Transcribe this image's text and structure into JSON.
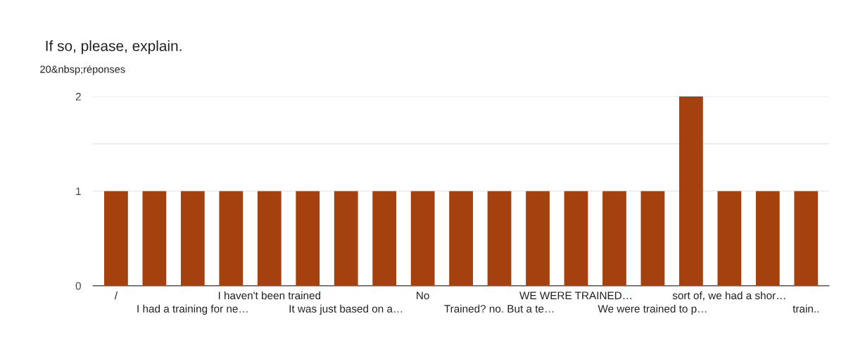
{
  "chart_data": {
    "type": "bar",
    "title": "If so, please, explain.",
    "subtitle": "20&nbsp;réponses",
    "categories": [
      "/",
      null,
      "I had a training for ne…",
      null,
      "I haven't been trained",
      null,
      "It was just based on a…",
      null,
      "No",
      null,
      "Trained? no. But a te…",
      null,
      "WE WERE TRAINED…",
      null,
      "We were trained to p…",
      null,
      "sort of, we had a shor…",
      null,
      "train.."
    ],
    "values": [
      1,
      1,
      1,
      1,
      1,
      1,
      1,
      1,
      1,
      1,
      1,
      1,
      1,
      1,
      1,
      2,
      1,
      1,
      1
    ],
    "color": "#a5400f",
    "ylim": [
      0,
      2
    ],
    "yticks": [
      0,
      {
        "value": 1.5,
        "label": null
      },
      1,
      2
    ],
    "grid": "y",
    "legend": false
  }
}
